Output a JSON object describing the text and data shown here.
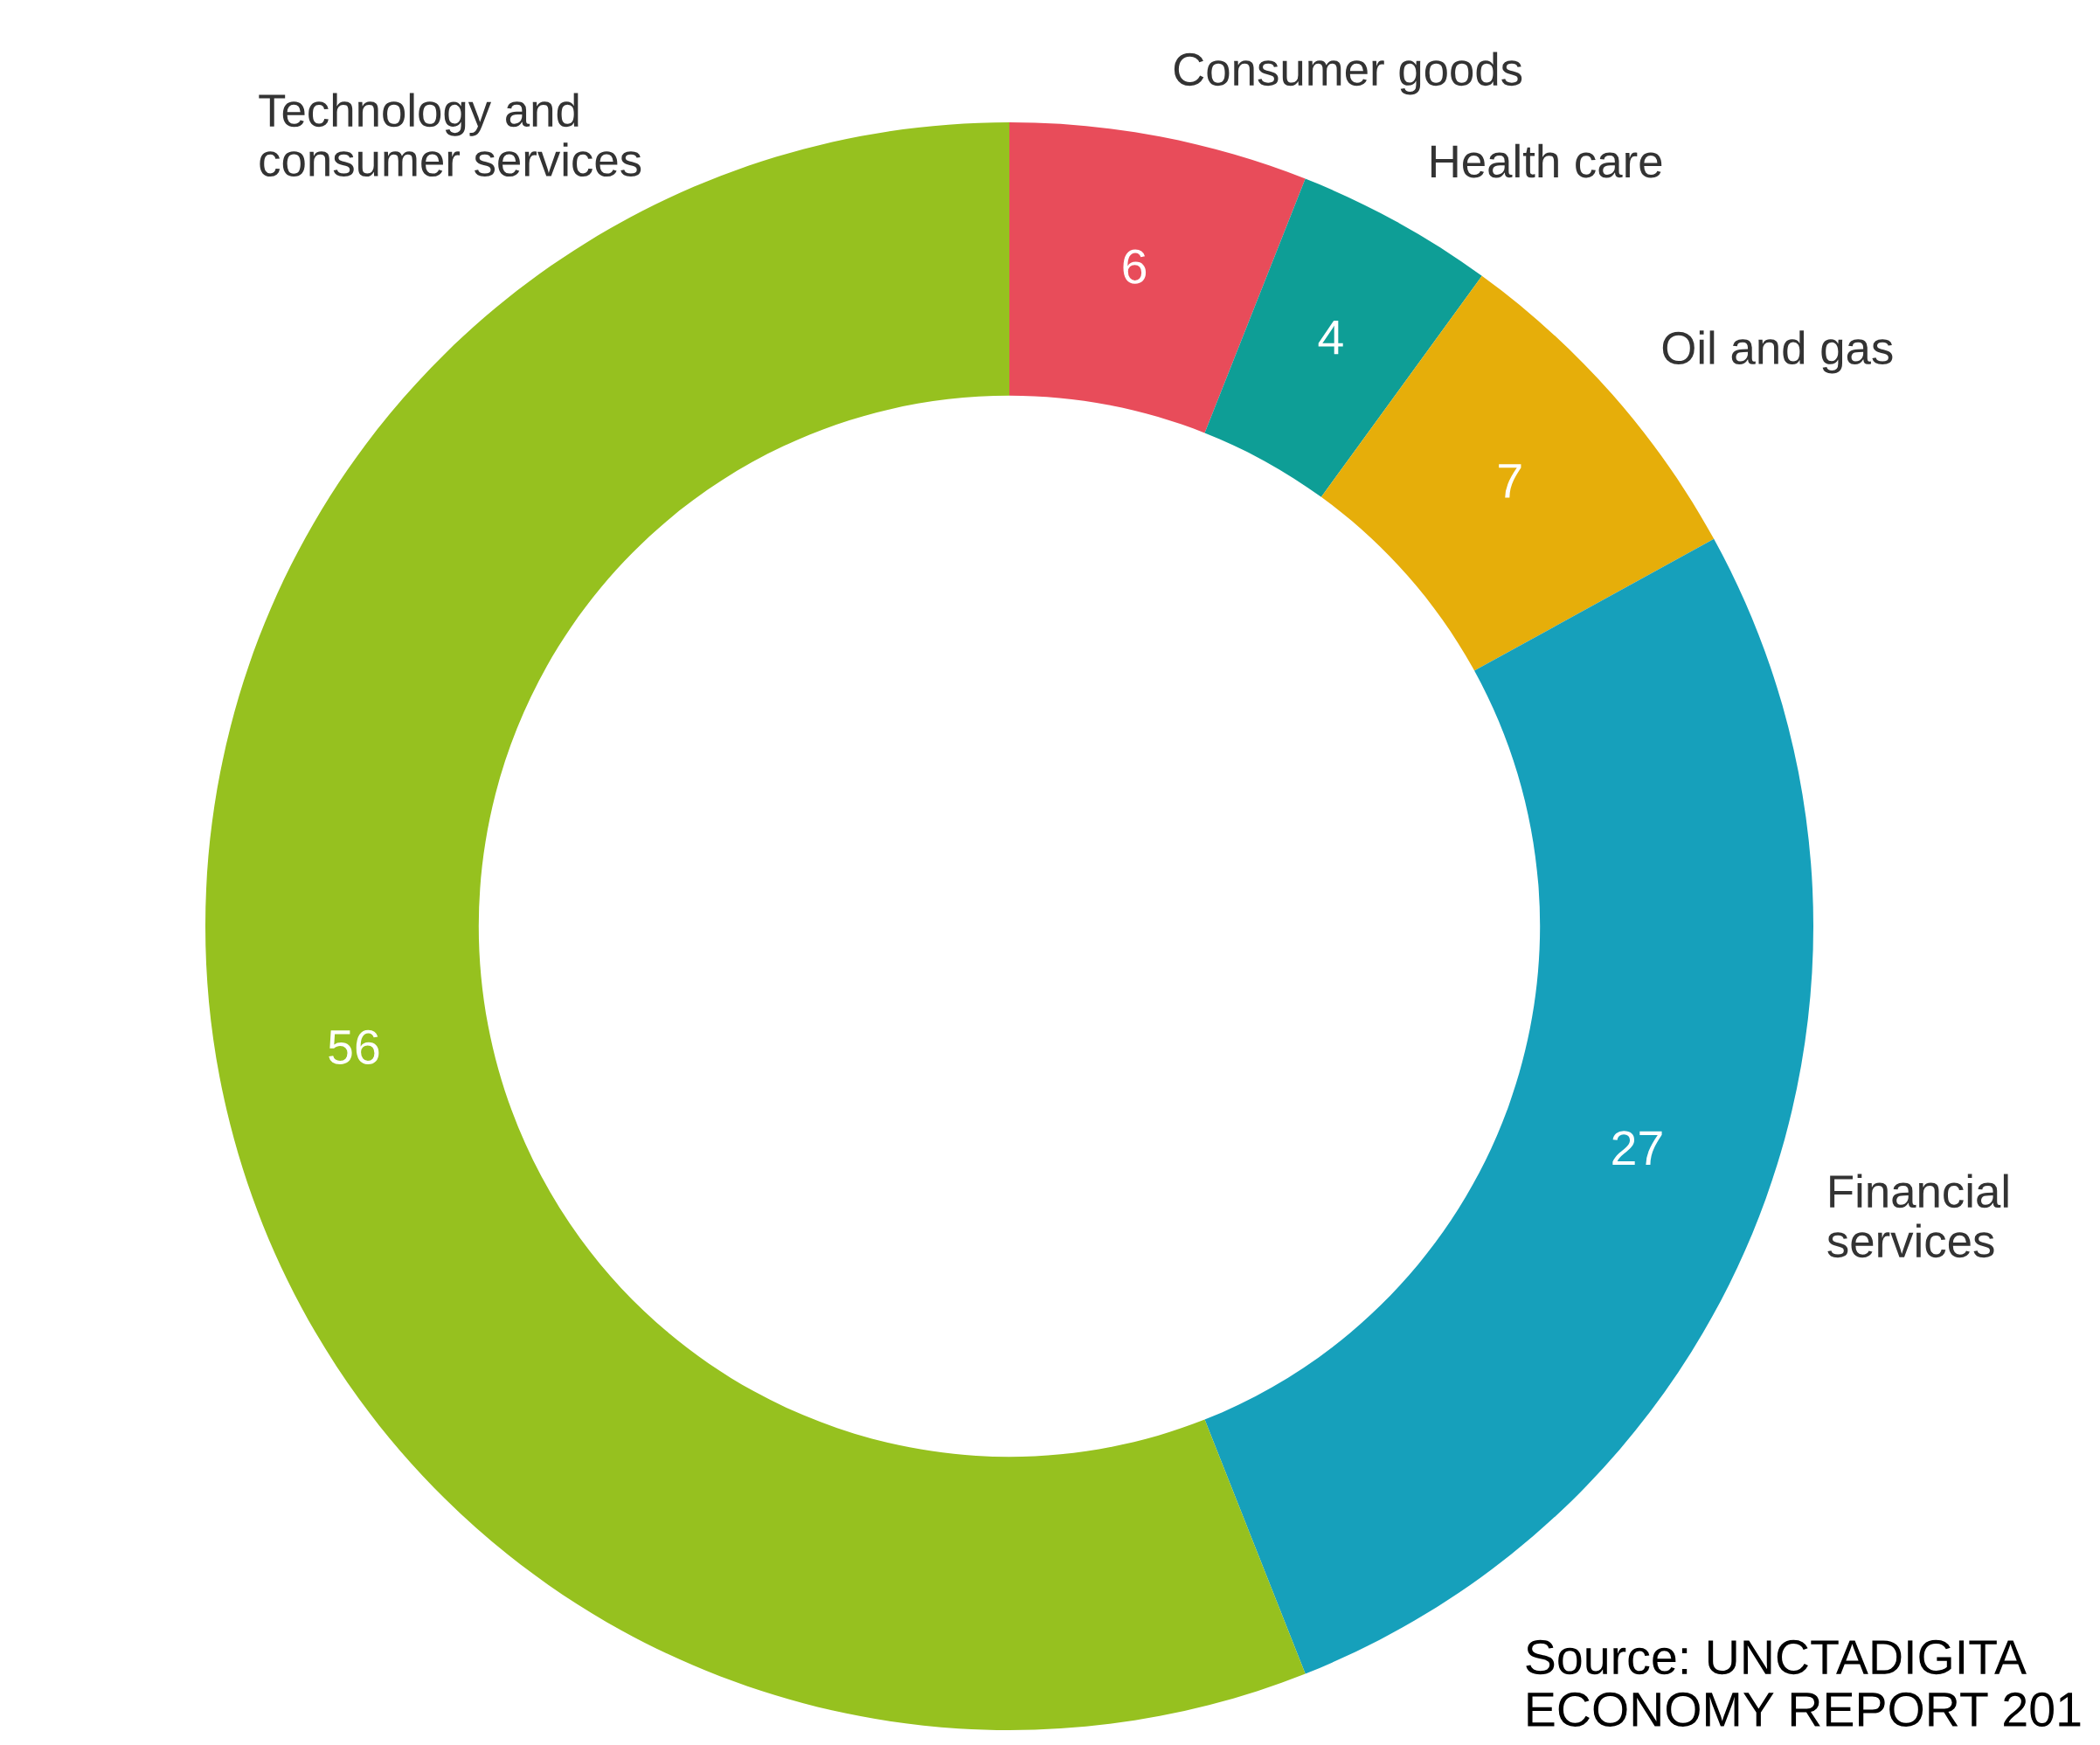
{
  "chart_data": {
    "type": "donut",
    "categories": [
      "Consumer goods",
      "Health care",
      "Oil and gas",
      "Financial services",
      "Technology and consumer services"
    ],
    "values": [
      6,
      4,
      7,
      27,
      56
    ],
    "colors": [
      "#e84c5a",
      "#0e9e96",
      "#e6ae0a",
      "#16a0bb",
      "#96c11f"
    ],
    "data_labels": true,
    "legend": false,
    "annotations": [
      "Source: UNCTADIGITA\nECONOMY REPORT 201"
    ]
  }
}
